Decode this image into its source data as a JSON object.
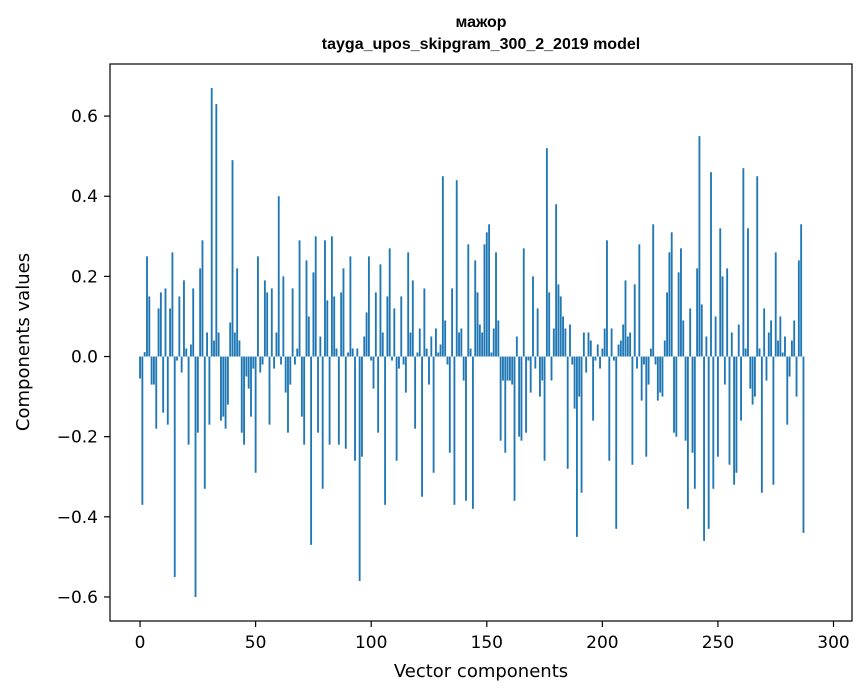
{
  "chart_data": {
    "type": "bar",
    "title": "мажор",
    "subtitle": "tayga_upos_skipgram_300_2_2019 model",
    "xlabel": "Vector components",
    "ylabel": "Components values",
    "xlim": [
      -13,
      308
    ],
    "ylim": [
      -0.66,
      0.73
    ],
    "xticks": [
      0,
      50,
      100,
      150,
      200,
      250,
      300
    ],
    "yticks": [
      -0.6,
      -0.4,
      -0.2,
      0.0,
      0.2,
      0.4,
      0.6
    ],
    "ytick_labels": [
      "−0.6",
      "−0.4",
      "−0.2",
      "0.0",
      "0.2",
      "0.4",
      "0.6"
    ],
    "bar_color": "#1f77b4",
    "grid": false,
    "legend": "none",
    "values": [
      -0.055,
      -0.37,
      0.011,
      0.25,
      0.15,
      -0.07,
      -0.07,
      -0.18,
      0.12,
      0.16,
      -0.14,
      0.17,
      -0.17,
      0.12,
      0.26,
      -0.55,
      -0.01,
      0.15,
      -0.04,
      0.19,
      0.02,
      -0.22,
      0.03,
      0.17,
      -0.6,
      -0.19,
      0.22,
      0.29,
      -0.33,
      0.06,
      -0.17,
      0.67,
      0.04,
      0.63,
      0.06,
      -0.16,
      -0.15,
      -0.18,
      -0.12,
      0.085,
      0.49,
      0.06,
      0.22,
      0.04,
      -0.19,
      -0.22,
      -0.05,
      -0.08,
      -0.15,
      -0.03,
      -0.29,
      0.25,
      -0.04,
      -0.02,
      0.19,
      0.16,
      -0.17,
      0.17,
      -0.03,
      0.06,
      0.4,
      -0.02,
      0.2,
      -0.09,
      -0.19,
      -0.07,
      0.17,
      -0.02,
      0.02,
      0.29,
      -0.15,
      -0.22,
      0.24,
      0.1,
      -0.47,
      0.21,
      0.3,
      -0.19,
      0.05,
      -0.33,
      0.29,
      0.14,
      -0.22,
      0.3,
      0.15,
      0.02,
      -0.22,
      0.16,
      0.22,
      -0.23,
      0.01,
      0.25,
      0.02,
      -0.26,
      0.02,
      -0.56,
      -0.25,
      0.05,
      0.11,
      0.25,
      -0.01,
      -0.08,
      0.16,
      -0.19,
      0.23,
      0.06,
      -0.37,
      0.15,
      0.27,
      -0.01,
      0.12,
      -0.26,
      -0.03,
      0.15,
      -0.02,
      -0.09,
      0.26,
      0.06,
      0.19,
      -0.18,
      0.01,
      0.07,
      -0.35,
      0.17,
      0.02,
      -0.07,
      0.05,
      -0.29,
      0.07,
      0.01,
      0.03,
      0.45,
      0.09,
      -0.02,
      -0.24,
      0.17,
      -0.37,
      0.44,
      0.06,
      0.07,
      -0.06,
      -0.36,
      0.28,
      0.02,
      -0.38,
      0.24,
      0.16,
      0.08,
      0.06,
      0.28,
      0.31,
      0.33,
      0.01,
      0.07,
      0.26,
      0.09,
      -0.21,
      -0.06,
      -0.24,
      -0.06,
      -0.06,
      -0.07,
      -0.36,
      0.05,
      -0.2,
      -0.21,
      0.27,
      -0.19,
      -0.01,
      -0.09,
      0.2,
      -0.03,
      0.12,
      -0.1,
      -0.06,
      -0.26,
      0.52,
      0.16,
      -0.06,
      0.07,
      0.38,
      0.18,
      0.15,
      0.1,
      0.07,
      -0.28,
      0.08,
      -0.02,
      -0.13,
      -0.45,
      -0.1,
      -0.34,
      0.06,
      -0.04,
      0.06,
      0.04,
      -0.16,
      -0.01,
      0.03,
      -0.03,
      0.02,
      0.07,
      0.29,
      -0.26,
      0.07,
      -0.01,
      -0.43,
      0.03,
      0.04,
      0.08,
      0.19,
      0.05,
      0.06,
      -0.27,
      0.18,
      -0.03,
      0.28,
      -0.11,
      -0.02,
      -0.25,
      -0.07,
      0.02,
      0.33,
      -0.02,
      -0.11,
      -0.09,
      -0.1,
      0.04,
      0.16,
      0.26,
      0.31,
      -0.19,
      -0.2,
      0.21,
      0.27,
      0.09,
      -0.21,
      -0.38,
      0.12,
      -0.24,
      -0.33,
      0.22,
      0.55,
      0.13,
      -0.46,
      0.05,
      -0.43,
      0.46,
      -0.33,
      0.1,
      -0.25,
      0.32,
      0.2,
      -0.07,
      0.22,
      -0.27,
      0.06,
      -0.32,
      -0.29,
      0.08,
      -0.16,
      0.47,
      0.02,
      0.32,
      -0.08,
      -0.12,
      -0.1,
      0.45,
      0.02,
      -0.34,
      0.12,
      -0.06,
      0.06,
      0.09,
      -0.32,
      0.26,
      0.04,
      0.1,
      0.01,
      0.05,
      -0.17,
      -0.05,
      0.04,
      0.09,
      -0.1,
      0.24,
      0.33,
      -0.44
    ]
  }
}
